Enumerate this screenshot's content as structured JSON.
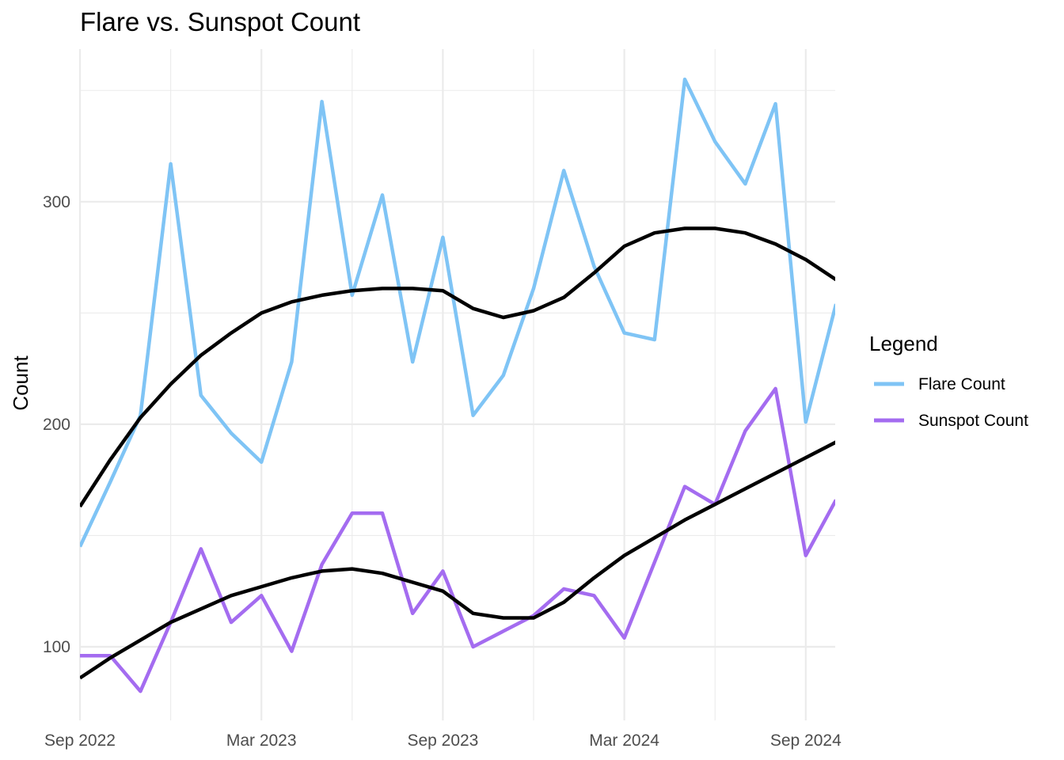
{
  "chart_data": {
    "type": "line",
    "title": "Flare vs. Sunspot Count",
    "xlabel": "",
    "ylabel": "Count",
    "x_ticks": [
      "Sep 2022",
      "Mar 2023",
      "Sep 2023",
      "Mar 2024",
      "Sep 2024"
    ],
    "y_ticks": [
      100,
      200,
      300
    ],
    "xlim": [
      "2022-09",
      "2024-10"
    ],
    "ylim": [
      68,
      368
    ],
    "grid": true,
    "legend": {
      "title": "Legend",
      "position": "right",
      "entries": [
        "Flare Count",
        "Sunspot Count"
      ]
    },
    "x": [
      "2022-09",
      "2022-10",
      "2022-11",
      "2022-12",
      "2023-01",
      "2023-02",
      "2023-03",
      "2023-04",
      "2023-05",
      "2023-06",
      "2023-07",
      "2023-08",
      "2023-09",
      "2023-10",
      "2023-11",
      "2023-12",
      "2024-01",
      "2024-02",
      "2024-03",
      "2024-04",
      "2024-05",
      "2024-06",
      "2024-07",
      "2024-08",
      "2024-09",
      "2024-10"
    ],
    "series": [
      {
        "name": "Flare Count",
        "color": "#7fc4f5",
        "values": [
          145,
          174,
          204,
          317,
          213,
          196,
          183,
          228,
          345,
          258,
          303,
          228,
          284,
          204,
          222,
          261,
          314,
          271,
          241,
          238,
          355,
          327,
          308,
          344,
          201,
          254
        ]
      },
      {
        "name": "Sunspot Count",
        "color": "#a46cf0",
        "values": [
          96,
          96,
          80,
          111,
          144,
          111,
          123,
          98,
          137,
          160,
          160,
          115,
          134,
          100,
          107,
          114,
          126,
          123,
          104,
          138,
          172,
          164,
          197,
          216,
          141,
          166
        ]
      }
    ],
    "smooth": [
      {
        "of": "Flare Count",
        "color": "#000000",
        "values": [
          163,
          184,
          203,
          218,
          231,
          241,
          250,
          255,
          258,
          260,
          261,
          261,
          260,
          252,
          248,
          251,
          257,
          268,
          280,
          286,
          288,
          288,
          286,
          281,
          274,
          265
        ]
      },
      {
        "of": "Sunspot Count",
        "color": "#000000",
        "values": [
          86,
          95,
          103,
          111,
          117,
          123,
          127,
          131,
          134,
          135,
          133,
          129,
          125,
          115,
          113,
          113,
          120,
          131,
          141,
          149,
          157,
          164,
          171,
          178,
          185,
          192
        ]
      }
    ]
  }
}
